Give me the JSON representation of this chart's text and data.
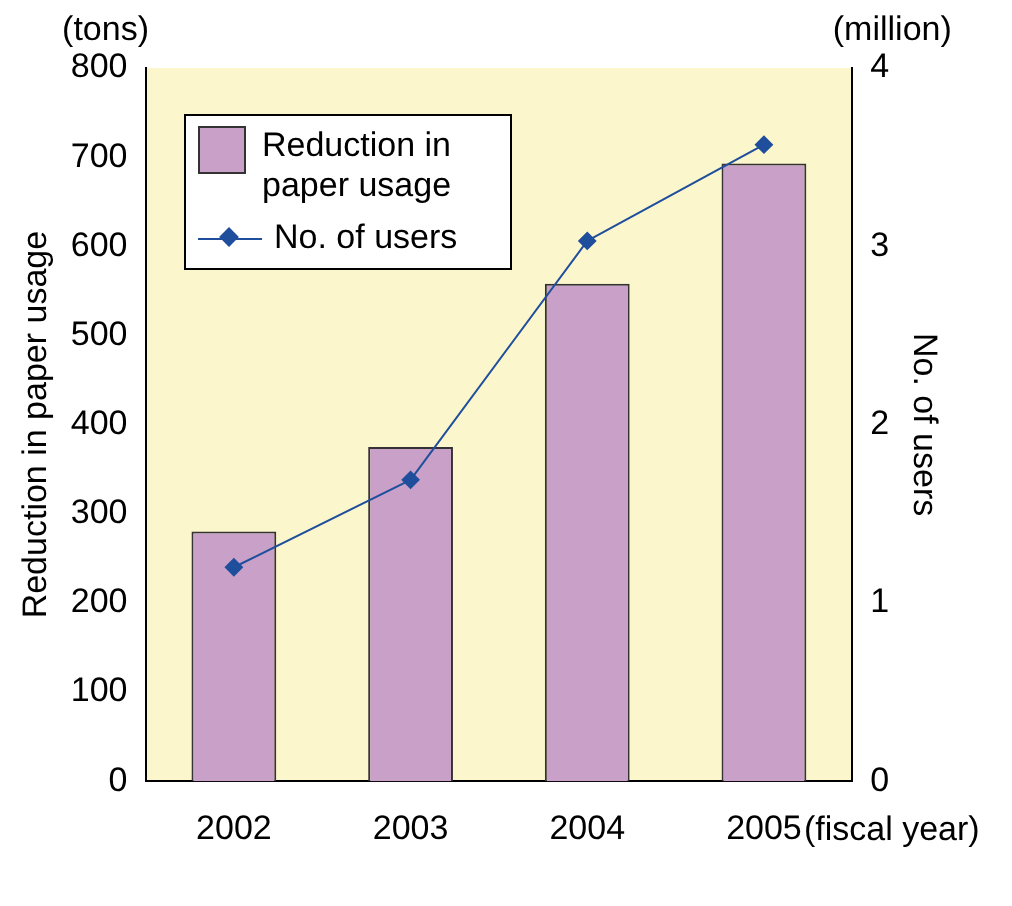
{
  "chart_data": {
    "type": "bar",
    "xlabel": "(fiscal year)",
    "ylabel": "Reduction in paper usage",
    "y2label": "No. of users",
    "annotations": [
      "(tons)",
      "(million)"
    ],
    "categories": [
      "2002",
      "2003",
      "2004",
      "2005"
    ],
    "series": [
      {
        "name": "Reduction in paper usage",
        "color": "#c8a0c8",
        "values": [
          280,
          375,
          558,
          693
        ]
      },
      {
        "name": "No. of users",
        "type": "line",
        "axis": "y2",
        "color": "#1f4e9c",
        "marker": "diamond",
        "values": [
          1.2,
          1.69,
          3.03,
          3.57
        ]
      }
    ],
    "ylim": [
      0,
      800
    ],
    "yticks": [
      0,
      100,
      200,
      300,
      400,
      500,
      600,
      700,
      800
    ],
    "y2lim": [
      0,
      4
    ],
    "y2ticks": [
      0,
      1,
      2,
      3,
      4
    ],
    "grid": false,
    "legend": "top left"
  }
}
